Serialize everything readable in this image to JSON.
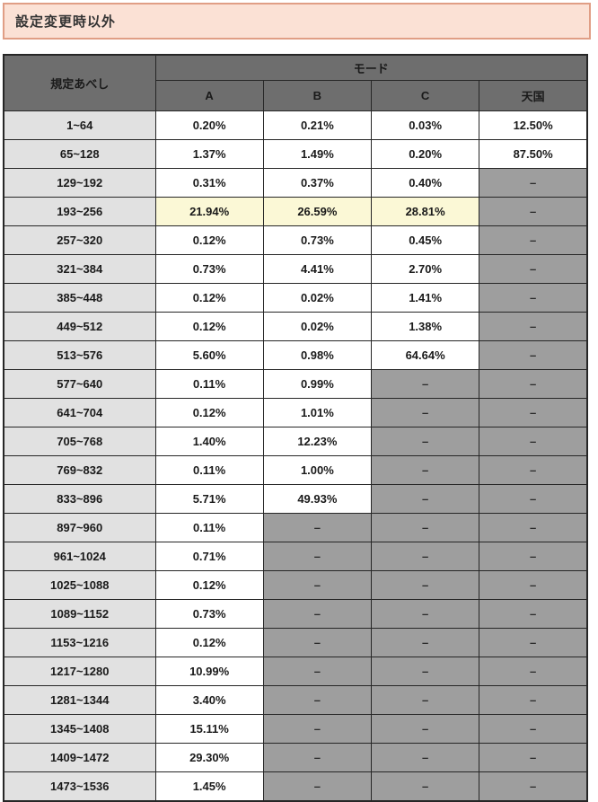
{
  "title_bar": {
    "label": "設定変更時以外",
    "bg_color": "#fbe1d5",
    "border_color": "#e09e85"
  },
  "table": {
    "col_header_main": "規定あべし",
    "mode_header": "モード",
    "mode_cols": [
      "A",
      "B",
      "C",
      "天国"
    ],
    "empty_placeholder": "–",
    "colors": {
      "header_bg": "#6e6e6e",
      "header_text": "#ffffff",
      "range_bg": "#e1e1e1",
      "value_bg": "#ffffff",
      "empty_bg": "#9e9e9e",
      "highlight_bg": "#fbf8d6",
      "grid_border": "#262626"
    },
    "rows": [
      {
        "range": "1~64",
        "values": [
          "0.20%",
          "0.21%",
          "0.03%",
          "12.50%"
        ],
        "highlight": false
      },
      {
        "range": "65~128",
        "values": [
          "1.37%",
          "1.49%",
          "0.20%",
          "87.50%"
        ],
        "highlight": false
      },
      {
        "range": "129~192",
        "values": [
          "0.31%",
          "0.37%",
          "0.40%",
          null
        ],
        "highlight": false
      },
      {
        "range": "193~256",
        "values": [
          "21.94%",
          "26.59%",
          "28.81%",
          null
        ],
        "highlight": true
      },
      {
        "range": "257~320",
        "values": [
          "0.12%",
          "0.73%",
          "0.45%",
          null
        ],
        "highlight": false
      },
      {
        "range": "321~384",
        "values": [
          "0.73%",
          "4.41%",
          "2.70%",
          null
        ],
        "highlight": false
      },
      {
        "range": "385~448",
        "values": [
          "0.12%",
          "0.02%",
          "1.41%",
          null
        ],
        "highlight": false
      },
      {
        "range": "449~512",
        "values": [
          "0.12%",
          "0.02%",
          "1.38%",
          null
        ],
        "highlight": false
      },
      {
        "range": "513~576",
        "values": [
          "5.60%",
          "0.98%",
          "64.64%",
          null
        ],
        "highlight": false
      },
      {
        "range": "577~640",
        "values": [
          "0.11%",
          "0.99%",
          null,
          null
        ],
        "highlight": false
      },
      {
        "range": "641~704",
        "values": [
          "0.12%",
          "1.01%",
          null,
          null
        ],
        "highlight": false
      },
      {
        "range": "705~768",
        "values": [
          "1.40%",
          "12.23%",
          null,
          null
        ],
        "highlight": false
      },
      {
        "range": "769~832",
        "values": [
          "0.11%",
          "1.00%",
          null,
          null
        ],
        "highlight": false
      },
      {
        "range": "833~896",
        "values": [
          "5.71%",
          "49.93%",
          null,
          null
        ],
        "highlight": false
      },
      {
        "range": "897~960",
        "values": [
          "0.11%",
          null,
          null,
          null
        ],
        "highlight": false
      },
      {
        "range": "961~1024",
        "values": [
          "0.71%",
          null,
          null,
          null
        ],
        "highlight": false
      },
      {
        "range": "1025~1088",
        "values": [
          "0.12%",
          null,
          null,
          null
        ],
        "highlight": false
      },
      {
        "range": "1089~1152",
        "values": [
          "0.73%",
          null,
          null,
          null
        ],
        "highlight": false
      },
      {
        "range": "1153~1216",
        "values": [
          "0.12%",
          null,
          null,
          null
        ],
        "highlight": false
      },
      {
        "range": "1217~1280",
        "values": [
          "10.99%",
          null,
          null,
          null
        ],
        "highlight": false
      },
      {
        "range": "1281~1344",
        "values": [
          "3.40%",
          null,
          null,
          null
        ],
        "highlight": false
      },
      {
        "range": "1345~1408",
        "values": [
          "15.11%",
          null,
          null,
          null
        ],
        "highlight": false
      },
      {
        "range": "1409~1472",
        "values": [
          "29.30%",
          null,
          null,
          null
        ],
        "highlight": false
      },
      {
        "range": "1473~1536",
        "values": [
          "1.45%",
          null,
          null,
          null
        ],
        "highlight": false
      }
    ]
  }
}
